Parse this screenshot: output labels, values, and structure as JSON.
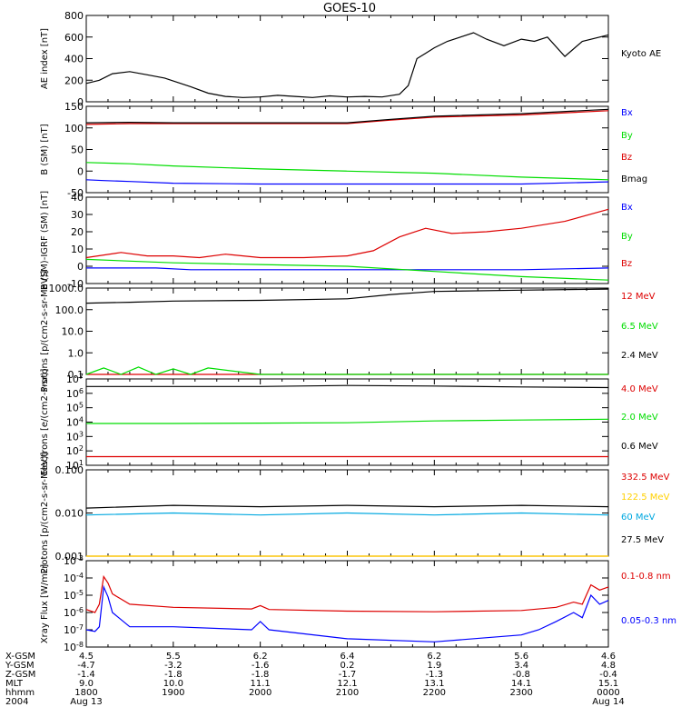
{
  "title": "GOES-10",
  "colors": {
    "black": "#000000",
    "blue": "#0000ff",
    "green": "#00dd00",
    "red": "#dd0000",
    "yellow": "#ffe000",
    "cyan": "#00a8e0"
  },
  "chart_data": [
    {
      "type": "line",
      "ylabel": "AE index [nT]",
      "ylim": [
        0,
        800
      ],
      "yticks": [
        "0",
        "200",
        "400",
        "600",
        "800"
      ],
      "series": [
        {
          "name": "Kyoto AE",
          "color": "#000000",
          "x": [
            0,
            0.15,
            0.3,
            0.5,
            0.7,
            0.9,
            1.2,
            1.4,
            1.6,
            1.8,
            2.0,
            2.2,
            2.4,
            2.6,
            2.8,
            3.0,
            3.2,
            3.4,
            3.6,
            3.7,
            3.8,
            3.9,
            4.0,
            4.15,
            4.3,
            4.45,
            4.6,
            4.8,
            5.0,
            5.15,
            5.3,
            5.5,
            5.7,
            5.9,
            6.0
          ],
          "y": [
            170,
            200,
            260,
            280,
            250,
            220,
            140,
            80,
            50,
            40,
            45,
            60,
            50,
            40,
            55,
            45,
            50,
            45,
            70,
            150,
            400,
            450,
            500,
            560,
            600,
            640,
            580,
            520,
            580,
            560,
            600,
            420,
            560,
            600,
            620
          ]
        }
      ]
    },
    {
      "type": "line",
      "ylabel": "B (SM) [nT]",
      "ylim": [
        -50,
        150
      ],
      "yticks": [
        "-50",
        "0",
        "50",
        "100",
        "150"
      ],
      "series": [
        {
          "name": "Bx",
          "color": "#0000ff",
          "x": [
            0,
            0.2,
            0.5,
            1,
            2,
            3,
            4,
            5,
            6
          ],
          "y": [
            -20,
            -22,
            -24,
            -28,
            -30,
            -30,
            -30,
            -30,
            -25
          ]
        },
        {
          "name": "By",
          "color": "#00dd00",
          "x": [
            0,
            0.5,
            1,
            2,
            3,
            4,
            5,
            6
          ],
          "y": [
            20,
            17,
            12,
            5,
            0,
            -5,
            -14,
            -20
          ]
        },
        {
          "name": "Bz",
          "color": "#dd0000",
          "x": [
            0,
            0.5,
            1,
            2,
            3,
            3.5,
            4,
            5,
            6
          ],
          "y": [
            108,
            110,
            110,
            110,
            110,
            118,
            125,
            130,
            140
          ]
        },
        {
          "name": "Bmag",
          "color": "#000000",
          "x": [
            0,
            0.5,
            1,
            2,
            3,
            3.5,
            4,
            5,
            6
          ],
          "y": [
            112,
            113,
            112,
            112,
            112,
            120,
            127,
            133,
            143
          ]
        }
      ]
    },
    {
      "type": "line",
      "ylabel": "B (SM)-IGRF (SM) [nT]",
      "ylim": [
        -10,
        40
      ],
      "yticks": [
        "-10",
        "0",
        "10",
        "20",
        "30",
        "40"
      ],
      "series": [
        {
          "name": "Bx",
          "color": "#0000ff",
          "x": [
            0,
            0.4,
            0.8,
            1.2,
            2,
            3,
            4,
            5,
            6
          ],
          "y": [
            -1,
            -1,
            -1,
            -2,
            -2,
            -2,
            -2,
            -2,
            -1
          ]
        },
        {
          "name": "By",
          "color": "#00dd00",
          "x": [
            0,
            1,
            2,
            3,
            4,
            5,
            6
          ],
          "y": [
            4,
            2,
            1,
            0,
            -3,
            -6,
            -8
          ]
        },
        {
          "name": "Bz",
          "color": "#dd0000",
          "x": [
            0,
            0.4,
            0.7,
            1.0,
            1.3,
            1.6,
            2.0,
            2.5,
            3.0,
            3.3,
            3.6,
            3.9,
            4.2,
            4.6,
            5.0,
            5.5,
            6.0
          ],
          "y": [
            5,
            8,
            6,
            6,
            5,
            7,
            5,
            5,
            6,
            9,
            17,
            22,
            19,
            20,
            22,
            26,
            33
          ]
        }
      ]
    },
    {
      "type": "line",
      "ylabel": "Protons [p/(cm2-s-sr-MeV)]",
      "yscale": "log",
      "ylim": [
        0.1,
        1000
      ],
      "yticks": [
        "0.1",
        "1.0",
        "10.0",
        "100.0",
        "1000.0"
      ],
      "series": [
        {
          "name": "12 MeV",
          "color": "#dd0000",
          "x": [
            0,
            6
          ],
          "y": [
            0.1,
            0.1
          ]
        },
        {
          "name": "6.5 MeV",
          "color": "#00dd00",
          "x": [
            0,
            0.2,
            0.4,
            0.6,
            0.8,
            1.0,
            1.2,
            1.4,
            2,
            3,
            4,
            5,
            6
          ],
          "y": [
            0.1,
            0.2,
            0.1,
            0.22,
            0.1,
            0.18,
            0.1,
            0.2,
            0.1,
            0.1,
            0.1,
            0.1,
            0.1
          ]
        },
        {
          "name": "2.4 MeV",
          "color": "#000000",
          "x": [
            0,
            0.5,
            1,
            2,
            3,
            3.5,
            4,
            5,
            6
          ],
          "y": [
            200,
            220,
            250,
            270,
            320,
            500,
            700,
            800,
            900
          ]
        }
      ]
    },
    {
      "type": "line",
      "ylabel": "Electrons [e/(cm2-s-sr)]",
      "yscale": "log",
      "ylim": [
        10,
        10000000
      ],
      "yticks": [
        "10^1",
        "10^2",
        "10^3",
        "10^4",
        "10^5",
        "10^6",
        "10^7"
      ],
      "series": [
        {
          "name": "4.0 MeV",
          "color": "#dd0000",
          "x": [
            0,
            1,
            2,
            3,
            4,
            5,
            6
          ],
          "y": [
            40,
            40,
            40,
            40,
            40,
            40,
            40
          ]
        },
        {
          "name": "2.0 MeV",
          "color": "#00dd00",
          "x": [
            0,
            1,
            2,
            3,
            4,
            5,
            6
          ],
          "y": [
            8000,
            8000,
            8500,
            9000,
            12000,
            14000,
            16000
          ]
        },
        {
          "name": "0.6 MeV",
          "color": "#000000",
          "x": [
            0,
            1,
            2,
            3,
            4,
            5,
            6
          ],
          "y": [
            3000000,
            3000000,
            3000000,
            3500000,
            3200000,
            2800000,
            2500000
          ]
        }
      ]
    },
    {
      "type": "line",
      "ylabel": "Protons [p/(cm2-s-sr-MeV)]",
      "yscale": "log",
      "ylim": [
        0.001,
        0.1
      ],
      "yticks": [
        "0.001",
        "0.010",
        "0.100"
      ],
      "series": [
        {
          "name": "332.5 MeV",
          "color": "#dd0000",
          "x": [
            0,
            6
          ],
          "y": [
            0.001,
            0.001
          ]
        },
        {
          "name": "122.5 MeV",
          "color": "#ffe000",
          "x": [
            0,
            6
          ],
          "y": [
            0.001,
            0.001
          ]
        },
        {
          "name": "60 MeV",
          "color": "#00a8e0",
          "x": [
            0,
            1,
            2,
            3,
            4,
            5,
            6
          ],
          "y": [
            0.009,
            0.01,
            0.009,
            0.01,
            0.009,
            0.01,
            0.009
          ]
        },
        {
          "name": "27.5 MeV",
          "color": "#000000",
          "x": [
            0,
            1,
            2,
            3,
            4,
            5,
            6
          ],
          "y": [
            0.013,
            0.015,
            0.014,
            0.015,
            0.014,
            0.015,
            0.014
          ]
        }
      ]
    },
    {
      "type": "line",
      "ylabel": "Xray Flux [W/m2]",
      "yscale": "log",
      "ylim": [
        1e-08,
        0.001
      ],
      "yticks": [
        "10^-8",
        "10^-7",
        "10^-6",
        "10^-5",
        "10^-4",
        "10^-3"
      ],
      "series": [
        {
          "name": "0.1-0.8 nm",
          "color": "#dd0000",
          "x": [
            0,
            0.1,
            0.15,
            0.2,
            0.25,
            0.3,
            0.5,
            1,
            1.9,
            2,
            2.1,
            3,
            4,
            5,
            5.4,
            5.6,
            5.7,
            5.8,
            5.9,
            6
          ],
          "y": [
            1.5e-06,
            1e-06,
            3e-06,
            0.00012,
            5e-05,
            1.2e-05,
            3e-06,
            2e-06,
            1.6e-06,
            2.5e-06,
            1.5e-06,
            1.2e-06,
            1.1e-06,
            1.3e-06,
            2e-06,
            4e-06,
            3e-06,
            4e-05,
            2e-05,
            3e-05
          ]
        },
        {
          "name": "0.05-0.3 nm",
          "color": "#0000ff",
          "x": [
            0,
            0.1,
            0.15,
            0.2,
            0.25,
            0.3,
            0.5,
            1,
            1.9,
            2,
            2.1,
            3,
            4,
            5,
            5.2,
            5.4,
            5.6,
            5.7,
            5.8,
            5.9,
            6
          ],
          "y": [
            1e-07,
            8e-08,
            1.5e-07,
            3e-05,
            8e-06,
            1e-06,
            1.5e-07,
            1.5e-07,
            1e-07,
            3e-07,
            1e-07,
            3e-08,
            2e-08,
            5e-08,
            1e-07,
            3e-07,
            1e-06,
            5e-07,
            1e-05,
            3e-06,
            5e-06
          ]
        }
      ]
    }
  ],
  "xaxis": {
    "row_labels": [
      "X-GSM",
      "Y-GSM",
      "Z-GSM",
      "MLT",
      "hhmm",
      "2004"
    ],
    "ticks": [
      {
        "x": 0,
        "vals": [
          "4.5",
          "-4.7",
          "-1.4",
          "9.0",
          "1800",
          "Aug 13"
        ]
      },
      {
        "x": 1,
        "vals": [
          "5.5",
          "-3.2",
          "-1.8",
          "10.0",
          "1900",
          ""
        ]
      },
      {
        "x": 2,
        "vals": [
          "6.2",
          "-1.6",
          "-1.8",
          "11.1",
          "2000",
          ""
        ]
      },
      {
        "x": 3,
        "vals": [
          "6.4",
          "0.2",
          "-1.7",
          "12.1",
          "2100",
          ""
        ]
      },
      {
        "x": 4,
        "vals": [
          "6.2",
          "1.9",
          "-1.3",
          "13.1",
          "2200",
          ""
        ]
      },
      {
        "x": 5,
        "vals": [
          "5.6",
          "3.4",
          "-0.8",
          "14.1",
          "2300",
          ""
        ]
      },
      {
        "x": 6,
        "vals": [
          "4.6",
          "4.8",
          "-0.4",
          "15.1",
          "0000",
          "Aug 14"
        ]
      }
    ]
  }
}
